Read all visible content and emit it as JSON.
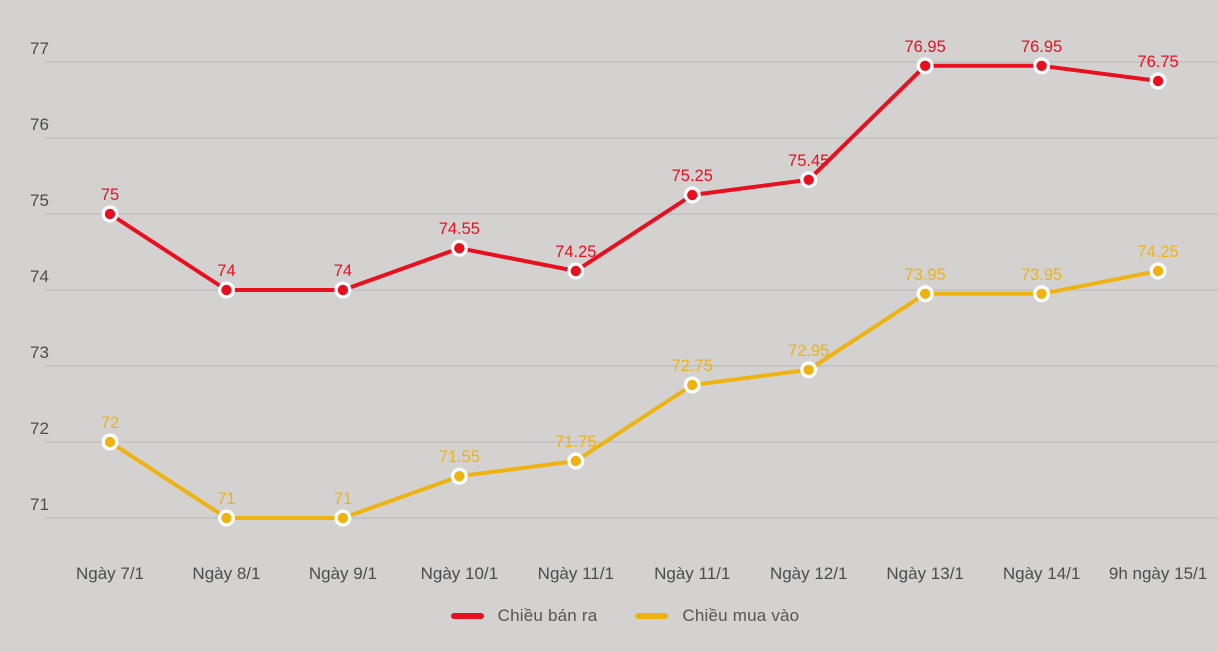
{
  "chart_data": {
    "type": "line",
    "categories": [
      "Ngày 7/1",
      "Ngày 8/1",
      "Ngày 9/1",
      "Ngày 10/1",
      "Ngày 11/1",
      "Ngày 11/1",
      "Ngày 12/1",
      "Ngày 13/1",
      "Ngày 14/1",
      "9h ngày 15/1"
    ],
    "series": [
      {
        "name": "Chiều bán ra",
        "color": "#e8101f",
        "values": [
          75,
          74,
          74,
          74.55,
          74.25,
          75.25,
          75.45,
          76.95,
          76.95,
          76.75
        ]
      },
      {
        "name": "Chiều mua vào",
        "color": "#eeb211",
        "values": [
          72,
          71,
          71,
          71.55,
          71.75,
          72.75,
          72.95,
          73.95,
          73.95,
          74.25
        ]
      }
    ],
    "y_ticks": [
      71,
      72,
      73,
      74,
      75,
      76,
      77
    ],
    "ylim": [
      70.4,
      77.2
    ],
    "grid": true,
    "point_labels": true,
    "legend_position": "bottom"
  },
  "colors": {
    "background": "#d3d2d1",
    "gridline": "#b9b8b7",
    "axis_text": "#4c4c4c",
    "legend_text": "#565554",
    "marker_ring": "#ffffff"
  }
}
